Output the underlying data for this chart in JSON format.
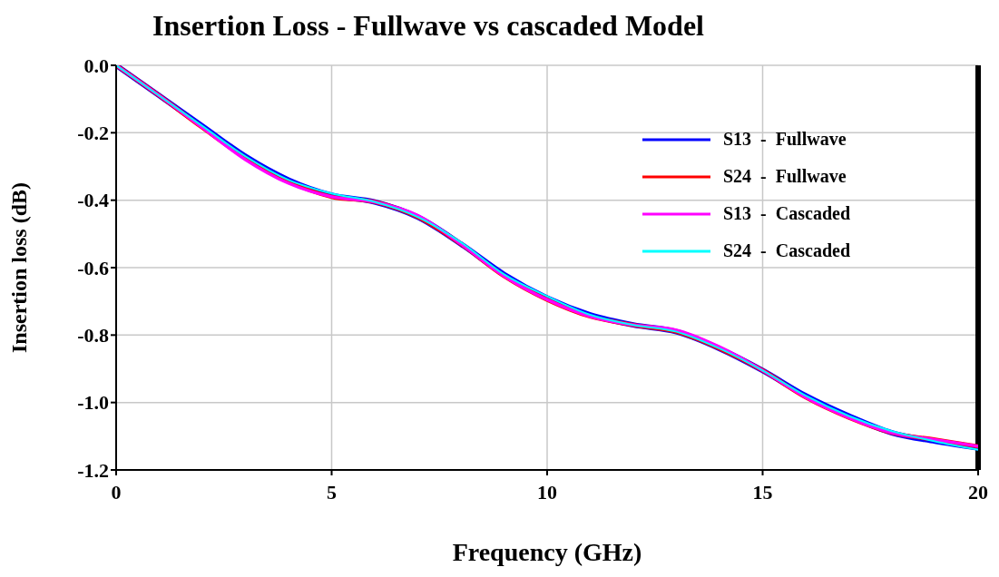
{
  "chart_data": {
    "type": "line",
    "title": "Insertion Loss - Fullwave vs cascaded Model",
    "xlabel": "Frequency (GHz)",
    "ylabel": "Insertion loss (dB)",
    "x": [
      0,
      1,
      2,
      3,
      4,
      5,
      6,
      7,
      8,
      9,
      10,
      11,
      12,
      13,
      14,
      15,
      16,
      17,
      18,
      19,
      20
    ],
    "series": [
      {
        "name": "S13  -  Fullwave",
        "color": "#0000ff",
        "values": [
          0,
          -0.09,
          -0.18,
          -0.27,
          -0.34,
          -0.385,
          -0.405,
          -0.45,
          -0.53,
          -0.62,
          -0.69,
          -0.74,
          -0.77,
          -0.79,
          -0.84,
          -0.905,
          -0.98,
          -1.04,
          -1.09,
          -1.115,
          -1.135
        ]
      },
      {
        "name": "S24  -  Fullwave",
        "color": "#ff0000",
        "values": [
          0,
          -0.09,
          -0.185,
          -0.275,
          -0.345,
          -0.39,
          -0.405,
          -0.45,
          -0.53,
          -0.625,
          -0.695,
          -0.745,
          -0.77,
          -0.79,
          -0.84,
          -0.905,
          -0.985,
          -1.045,
          -1.09,
          -1.11,
          -1.13
        ]
      },
      {
        "name": "S13  -  Cascaded",
        "color": "#ff00ff",
        "values": [
          0,
          -0.09,
          -0.185,
          -0.28,
          -0.35,
          -0.39,
          -0.405,
          -0.445,
          -0.53,
          -0.625,
          -0.695,
          -0.745,
          -0.77,
          -0.785,
          -0.835,
          -0.905,
          -0.985,
          -1.045,
          -1.09,
          -1.11,
          -1.13
        ]
      },
      {
        "name": "S24  -  Cascaded",
        "color": "#00ffff",
        "values": [
          0,
          -0.09,
          -0.18,
          -0.27,
          -0.34,
          -0.38,
          -0.405,
          -0.45,
          -0.525,
          -0.62,
          -0.685,
          -0.74,
          -0.77,
          -0.79,
          -0.84,
          -0.905,
          -0.98,
          -1.04,
          -1.085,
          -1.115,
          -1.14
        ]
      }
    ],
    "xlim": [
      0,
      20
    ],
    "xticks": [
      0,
      5,
      10,
      15,
      20
    ],
    "ylim": [
      -1.2,
      0
    ],
    "yticks": [
      {
        "value": -1.2,
        "label": "-1.2"
      },
      {
        "value": -1,
        "label": "-1.0"
      },
      {
        "value": -0.8,
        "label": "-0.8"
      },
      {
        "value": -0.6,
        "label": "-0.6"
      },
      {
        "value": -0.4,
        "label": "-0.4"
      },
      {
        "value": -0.2,
        "label": "-0.2"
      },
      {
        "value": 0,
        "label": "0.0"
      }
    ],
    "ref_lines": [
      {
        "axis": "x",
        "value": 20,
        "label": null,
        "color": "#000000"
      }
    ],
    "grid": true,
    "legend": "top right",
    "marker": "none",
    "line_style": "solid"
  }
}
